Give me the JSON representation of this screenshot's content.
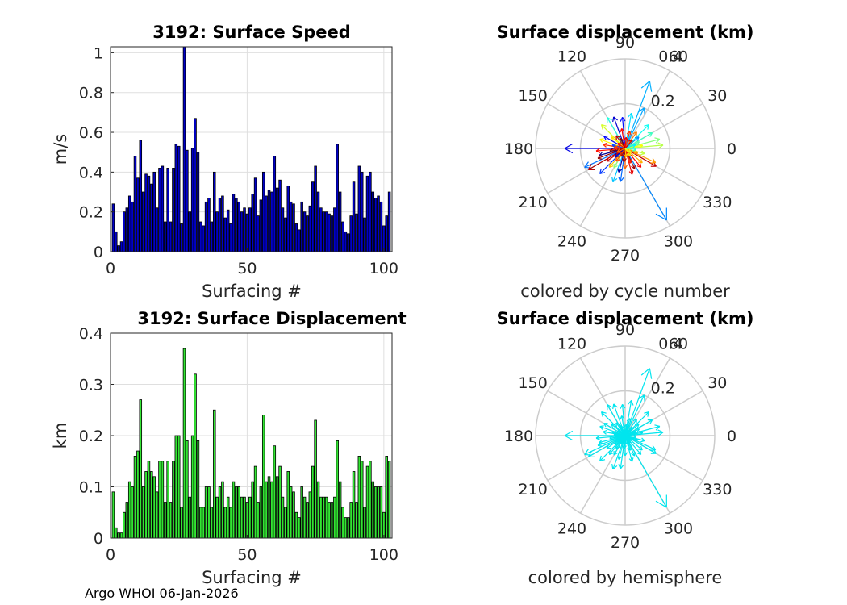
{
  "colors": {
    "speed_bar": "#0000c8",
    "disp_bar": "#33e633",
    "bar_edge": "#000000",
    "grid": "#dfdfdf",
    "axis": "#262626",
    "polar_grid": "#cccccc",
    "hemisphere": "#00e5ee"
  },
  "footer": "Argo WHOI 06-Jan-2026",
  "chart_data": [
    {
      "type": "bar",
      "title": "3192: Surface Speed",
      "xlabel": "Surfacing #",
      "ylabel": "m/s",
      "xlim": [
        0,
        103
      ],
      "ylim": [
        0,
        1.03
      ],
      "xticks": [
        0,
        50,
        100
      ],
      "xtick_labels": [
        "0",
        "50",
        "100"
      ],
      "yticks": [
        0,
        0.2,
        0.4,
        0.6,
        0.8,
        1
      ],
      "ytick_labels": [
        "0",
        "0.2",
        "0.4",
        "0.6",
        "0.8",
        "1"
      ],
      "x_start": 1,
      "values": [
        0.24,
        0.1,
        0.03,
        0.05,
        0.2,
        0.22,
        0.28,
        0.25,
        0.48,
        0.37,
        0.56,
        0.3,
        0.39,
        0.38,
        0.34,
        0.4,
        0.22,
        0.42,
        0.43,
        0.15,
        0.42,
        0.15,
        0.42,
        0.54,
        0.53,
        0.14,
        1.03,
        0.51,
        0.2,
        0.52,
        0.67,
        0.5,
        0.15,
        0.13,
        0.25,
        0.27,
        0.15,
        0.4,
        0.2,
        0.27,
        0.28,
        0.17,
        0.21,
        0.14,
        0.29,
        0.27,
        0.25,
        0.2,
        0.22,
        0.19,
        0.22,
        0.29,
        0.37,
        0.18,
        0.26,
        0.4,
        0.28,
        0.31,
        0.3,
        0.48,
        0.32,
        0.36,
        0.22,
        0.17,
        0.33,
        0.25,
        0.24,
        0.14,
        0.11,
        0.25,
        0.2,
        0.18,
        0.23,
        0.35,
        0.43,
        0.3,
        0.22,
        0.2,
        0.2,
        0.19,
        0.18,
        0.22,
        0.54,
        0.3,
        0.15,
        0.1,
        0.09,
        0.18,
        0.35,
        0.19,
        0.43,
        0.4,
        0.17,
        0.38,
        0.4,
        0.3,
        0.27,
        0.28,
        0.25,
        0.13,
        0.18,
        0.3
      ]
    },
    {
      "type": "bar",
      "title": "3192: Surface Displacement",
      "xlabel": "Surfacing #",
      "ylabel": "km",
      "xlim": [
        0,
        103
      ],
      "ylim": [
        0,
        0.4
      ],
      "xticks": [
        0,
        50,
        100
      ],
      "xtick_labels": [
        "0",
        "50",
        "100"
      ],
      "yticks": [
        0,
        0.1,
        0.2,
        0.3,
        0.4
      ],
      "ytick_labels": [
        "0",
        "0.1",
        "0.2",
        "0.3",
        "0.4"
      ],
      "x_start": 1,
      "values": [
        0.09,
        0.02,
        0.01,
        0.01,
        0.05,
        0.07,
        0.11,
        0.1,
        0.16,
        0.17,
        0.27,
        0.1,
        0.13,
        0.15,
        0.13,
        0.12,
        0.09,
        0.15,
        0.15,
        0.07,
        0.15,
        0.07,
        0.15,
        0.2,
        0.2,
        0.06,
        0.37,
        0.19,
        0.08,
        0.2,
        0.32,
        0.19,
        0.06,
        0.06,
        0.1,
        0.1,
        0.06,
        0.25,
        0.08,
        0.1,
        0.11,
        0.06,
        0.08,
        0.06,
        0.11,
        0.1,
        0.1,
        0.08,
        0.08,
        0.07,
        0.08,
        0.11,
        0.14,
        0.07,
        0.1,
        0.24,
        0.11,
        0.12,
        0.11,
        0.18,
        0.12,
        0.14,
        0.08,
        0.06,
        0.13,
        0.1,
        0.09,
        0.05,
        0.04,
        0.1,
        0.08,
        0.07,
        0.09,
        0.14,
        0.23,
        0.11,
        0.08,
        0.08,
        0.08,
        0.07,
        0.07,
        0.08,
        0.19,
        0.11,
        0.06,
        0.04,
        0.04,
        0.07,
        0.13,
        0.07,
        0.16,
        0.15,
        0.06,
        0.14,
        0.15,
        0.11,
        0.1,
        0.1,
        0.1,
        0.05,
        0.16,
        0.15
      ]
    },
    {
      "type": "scatter",
      "subtype": "compass",
      "title": "Surface displacement (km)",
      "xlabel": "colored by cycle number",
      "color_mode": "cycle",
      "rlim": [
        0,
        0.4
      ],
      "rticks": [
        0.2,
        0.4
      ],
      "rtick_labels": [
        "0.2",
        "0.4"
      ],
      "angle_ticks": [
        0,
        30,
        60,
        90,
        120,
        150,
        180,
        210,
        240,
        270,
        300,
        330
      ],
      "angle_labels": [
        "0",
        "30",
        "60",
        "90",
        "120",
        "150",
        "180",
        "210",
        "240",
        "270",
        "300",
        "330"
      ],
      "vectors": [
        {
          "angle": 300,
          "r": 0.37,
          "cycle": 27
        },
        {
          "angle": 70,
          "r": 0.32,
          "cycle": 31
        },
        {
          "angle": 65,
          "r": 0.2,
          "cycle": 30
        },
        {
          "angle": 180,
          "r": 0.27,
          "cycle": 11
        },
        {
          "angle": 205,
          "r": 0.2,
          "cycle": 25
        },
        {
          "angle": 210,
          "r": 0.19,
          "cycle": 97
        },
        {
          "angle": 225,
          "r": 0.16,
          "cycle": 19
        },
        {
          "angle": 250,
          "r": 0.16,
          "cycle": 33
        },
        {
          "angle": 262,
          "r": 0.15,
          "cycle": 24
        },
        {
          "angle": 330,
          "r": 0.16,
          "cycle": 95
        },
        {
          "angle": 335,
          "r": 0.15,
          "cycle": 74
        },
        {
          "angle": 5,
          "r": 0.17,
          "cycle": 57
        },
        {
          "angle": 15,
          "r": 0.16,
          "cycle": 52
        },
        {
          "angle": 30,
          "r": 0.14,
          "cycle": 45
        },
        {
          "angle": 45,
          "r": 0.15,
          "cycle": 40
        },
        {
          "angle": 80,
          "r": 0.16,
          "cycle": 36
        },
        {
          "angle": 95,
          "r": 0.14,
          "cycle": 15
        },
        {
          "angle": 110,
          "r": 0.15,
          "cycle": 9
        },
        {
          "angle": 120,
          "r": 0.16,
          "cycle": 42
        },
        {
          "angle": 135,
          "r": 0.15,
          "cycle": 60
        },
        {
          "angle": 150,
          "r": 0.11,
          "cycle": 14
        },
        {
          "angle": 160,
          "r": 0.12,
          "cycle": 65
        },
        {
          "angle": 170,
          "r": 0.1,
          "cycle": 85
        },
        {
          "angle": 185,
          "r": 0.13,
          "cycle": 88
        },
        {
          "angle": 195,
          "r": 0.12,
          "cycle": 3
        },
        {
          "angle": 200,
          "r": 0.13,
          "cycle": 100
        },
        {
          "angle": 215,
          "r": 0.1,
          "cycle": 94
        },
        {
          "angle": 230,
          "r": 0.11,
          "cycle": 70
        },
        {
          "angle": 240,
          "r": 0.1,
          "cycle": 53
        },
        {
          "angle": 255,
          "r": 0.11,
          "cycle": 5
        },
        {
          "angle": 270,
          "r": 0.09,
          "cycle": 80
        },
        {
          "angle": 285,
          "r": 0.12,
          "cycle": 92
        },
        {
          "angle": 295,
          "r": 0.1,
          "cycle": 99
        },
        {
          "angle": 310,
          "r": 0.11,
          "cycle": 90
        },
        {
          "angle": 320,
          "r": 0.1,
          "cycle": 72
        },
        {
          "angle": 345,
          "r": 0.09,
          "cycle": 58
        },
        {
          "angle": 10,
          "r": 0.08,
          "cycle": 63
        },
        {
          "angle": 25,
          "r": 0.07,
          "cycle": 48
        },
        {
          "angle": 40,
          "r": 0.08,
          "cycle": 28
        },
        {
          "angle": 55,
          "r": 0.09,
          "cycle": 77
        },
        {
          "angle": 75,
          "r": 0.08,
          "cycle": 84
        },
        {
          "angle": 100,
          "r": 0.09,
          "cycle": 89
        },
        {
          "angle": 125,
          "r": 0.07,
          "cycle": 96
        },
        {
          "angle": 140,
          "r": 0.08,
          "cycle": 67
        },
        {
          "angle": 165,
          "r": 0.06,
          "cycle": 21
        },
        {
          "angle": 190,
          "r": 0.07,
          "cycle": 102
        },
        {
          "angle": 220,
          "r": 0.06,
          "cycle": 7
        },
        {
          "angle": 235,
          "r": 0.07,
          "cycle": 82
        },
        {
          "angle": 265,
          "r": 0.06,
          "cycle": 98
        },
        {
          "angle": 290,
          "r": 0.07,
          "cycle": 86
        },
        {
          "angle": 340,
          "r": 0.06,
          "cycle": 75
        },
        {
          "angle": 355,
          "r": 0.05,
          "cycle": 44
        },
        {
          "angle": 20,
          "r": 0.05,
          "cycle": 38
        },
        {
          "angle": 50,
          "r": 0.05,
          "cycle": 93
        },
        {
          "angle": 85,
          "r": 0.05,
          "cycle": 91
        },
        {
          "angle": 115,
          "r": 0.05,
          "cycle": 101
        },
        {
          "angle": 145,
          "r": 0.04,
          "cycle": 87
        },
        {
          "angle": 175,
          "r": 0.05,
          "cycle": 83
        },
        {
          "angle": 205,
          "r": 0.04,
          "cycle": 79
        },
        {
          "angle": 245,
          "r": 0.04,
          "cycle": 96
        },
        {
          "angle": 275,
          "r": 0.04,
          "cycle": 71
        },
        {
          "angle": 305,
          "r": 0.04,
          "cycle": 66
        },
        {
          "angle": 325,
          "r": 0.03,
          "cycle": 61
        }
      ]
    },
    {
      "type": "scatter",
      "subtype": "compass",
      "title": "Surface displacement (km)",
      "xlabel": "colored by hemisphere",
      "color_mode": "hemisphere",
      "rlim": [
        0,
        0.4
      ],
      "rticks": [
        0.2,
        0.4
      ],
      "rtick_labels": [
        "0.2",
        "0.4"
      ],
      "angle_ticks": [
        0,
        30,
        60,
        90,
        120,
        150,
        180,
        210,
        240,
        270,
        300,
        330
      ],
      "angle_labels": [
        "0",
        "30",
        "60",
        "90",
        "120",
        "150",
        "180",
        "210",
        "240",
        "270",
        "300",
        "330"
      ],
      "same_vectors_as_panel": 2
    }
  ]
}
